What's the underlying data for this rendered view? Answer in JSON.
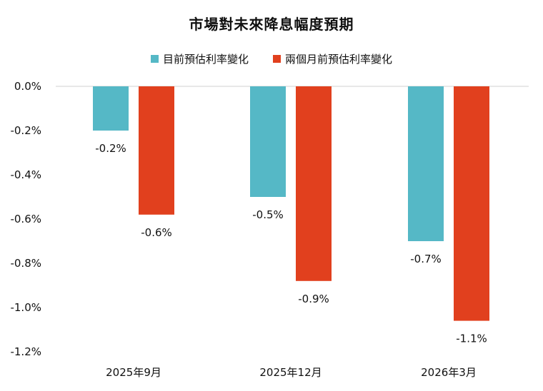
{
  "chart_data": {
    "type": "bar",
    "title": "市場對未來降息幅度預期",
    "categories": [
      "2025年9月",
      "2025年12月",
      "2026年3月"
    ],
    "series": [
      {
        "name": "目前預估利率變化",
        "color": "#55b8c6",
        "values": [
          -0.2,
          -0.5,
          -0.7
        ],
        "labels": [
          "-0.2%",
          "-0.5%",
          "-0.7%"
        ]
      },
      {
        "name": "兩個月前預估利率變化",
        "color": "#e1401e",
        "values": [
          -0.58,
          -0.88,
          -1.06
        ],
        "labels": [
          "-0.6%",
          "-0.9%",
          "-1.1%"
        ]
      }
    ],
    "yticks": [
      "0.0%",
      "-0.2%",
      "-0.4%",
      "-0.6%",
      "-0.8%",
      "-1.0%",
      "-1.2%"
    ],
    "ylim": [
      -1.2,
      0
    ],
    "legend_position": "top-center",
    "grid": false
  }
}
